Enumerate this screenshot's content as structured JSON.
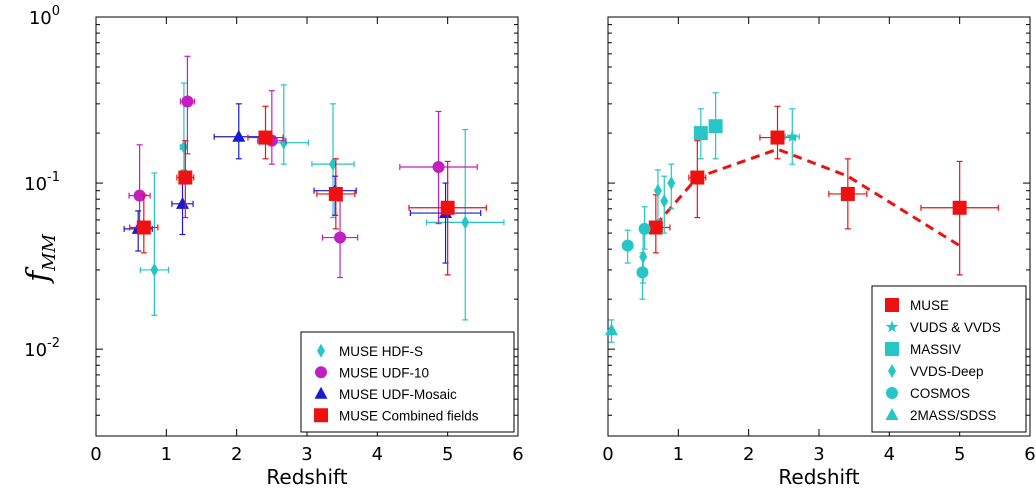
{
  "chart_data": [
    {
      "type": "scatter",
      "xlabel": "Redshift",
      "ylabel": "f",
      "ylabel_sub": "MM",
      "xlim": [
        0,
        6
      ],
      "ylim": [
        0.003,
        1.0
      ],
      "yscale": "log",
      "xticks": [
        "0",
        "1",
        "2",
        "3",
        "4",
        "5",
        "6"
      ],
      "yticks": [
        {
          "v": 1.0,
          "base": "10",
          "exp": "0"
        },
        {
          "v": 0.1,
          "base": "10",
          "exp": "-1"
        },
        {
          "v": 0.01,
          "base": "10",
          "exp": "-2"
        }
      ],
      "legend_position": "bottom-right",
      "series": [
        {
          "name": "MUSE HDF-S",
          "color": "#26c6c6",
          "marker": "diamond",
          "points": [
            {
              "x": 0.83,
              "y": 0.03,
              "xerr": [
                0.2,
                0.2
              ],
              "yerr": [
                0.016,
                0.115
              ]
            },
            {
              "x": 1.25,
              "y": 0.165,
              "xerr": [
                0.05,
                0.05
              ],
              "yerr": [
                0.12,
                0.4
              ]
            },
            {
              "x": 2.67,
              "y": 0.175,
              "xerr": [
                0.35,
                0.35
              ],
              "yerr": [
                0.13,
                0.39
              ]
            },
            {
              "x": 3.37,
              "y": 0.13,
              "xerr": [
                0.3,
                0.3
              ],
              "yerr": [
                0.062,
                0.3
              ]
            },
            {
              "x": 5.25,
              "y": 0.058,
              "xerr": [
                0.55,
                0.55
              ],
              "yerr": [
                0.015,
                0.21
              ]
            }
          ]
        },
        {
          "name": "MUSE UDF-10",
          "color": "#c21fc2",
          "marker": "circle",
          "points": [
            {
              "x": 0.62,
              "y": 0.084,
              "xerr": [
                0.15,
                0.15
              ],
              "yerr": [
                0.052,
                0.17
              ]
            },
            {
              "x": 1.3,
              "y": 0.31,
              "xerr": [
                0.1,
                0.1
              ],
              "yerr": [
                0.15,
                0.58
              ]
            },
            {
              "x": 2.5,
              "y": 0.18,
              "xerr": [
                0.2,
                0.2
              ],
              "yerr": [
                0.13,
                0.36
              ]
            },
            {
              "x": 3.47,
              "y": 0.047,
              "xerr": [
                0.25,
                0.25
              ],
              "yerr": [
                0.027,
                0.078
              ]
            },
            {
              "x": 4.87,
              "y": 0.125,
              "xerr": [
                0.55,
                0.55
              ],
              "yerr": [
                0.057,
                0.27
              ]
            }
          ]
        },
        {
          "name": "MUSE UDF-Mosaic",
          "color": "#1a1ad0",
          "marker": "triangle",
          "points": [
            {
              "x": 0.6,
              "y": 0.053,
              "xerr": [
                0.2,
                0.2
              ],
              "yerr": [
                0.039,
                0.068
              ]
            },
            {
              "x": 1.23,
              "y": 0.075,
              "xerr": [
                0.15,
                0.15
              ],
              "yerr": [
                0.049,
                0.1
              ]
            },
            {
              "x": 2.03,
              "y": 0.19,
              "xerr": [
                0.35,
                0.35
              ],
              "yerr": [
                0.14,
                0.3
              ]
            },
            {
              "x": 3.4,
              "y": 0.09,
              "xerr": [
                0.3,
                0.3
              ],
              "yerr": [
                0.064,
                0.11
              ]
            },
            {
              "x": 4.97,
              "y": 0.066,
              "xerr": [
                0.5,
                0.5
              ],
              "yerr": [
                0.033,
                0.1
              ]
            }
          ]
        },
        {
          "name": "MUSE Combined fields",
          "color": "#ee1111",
          "marker": "square",
          "points": [
            {
              "x": 0.68,
              "y": 0.054,
              "xerr": [
                0.2,
                0.2
              ],
              "yerr": [
                0.038,
                0.085
              ]
            },
            {
              "x": 1.27,
              "y": 0.108,
              "xerr": [
                0.12,
                0.12
              ],
              "yerr": [
                0.062,
                0.18
              ]
            },
            {
              "x": 2.41,
              "y": 0.188,
              "xerr": [
                0.25,
                0.25
              ],
              "yerr": [
                0.14,
                0.29
              ]
            },
            {
              "x": 3.41,
              "y": 0.086,
              "xerr": [
                0.27,
                0.27
              ],
              "yerr": [
                0.053,
                0.14
              ]
            },
            {
              "x": 5.0,
              "y": 0.071,
              "xerr": [
                0.55,
                0.55
              ],
              "yerr": [
                0.028,
                0.135
              ]
            }
          ]
        }
      ]
    },
    {
      "type": "scatter",
      "xlabel": "Redshift",
      "xlim": [
        0,
        6
      ],
      "ylim": [
        0.003,
        1.0
      ],
      "yscale": "log",
      "xticks": [
        "0",
        "1",
        "2",
        "3",
        "4",
        "5",
        "6"
      ],
      "legend_position": "bottom-right",
      "series": [
        {
          "name": "MUSE",
          "color": "#ee1111",
          "marker": "square",
          "points": [
            {
              "x": 0.68,
              "y": 0.054,
              "xerr": [
                0.2,
                0.2
              ],
              "yerr": [
                0.038,
                0.085
              ]
            },
            {
              "x": 1.27,
              "y": 0.108,
              "xerr": [
                0.12,
                0.12
              ],
              "yerr": [
                0.062,
                0.18
              ]
            },
            {
              "x": 2.41,
              "y": 0.188,
              "xerr": [
                0.25,
                0.25
              ],
              "yerr": [
                0.14,
                0.29
              ]
            },
            {
              "x": 3.41,
              "y": 0.086,
              "xerr": [
                0.27,
                0.27
              ],
              "yerr": [
                0.053,
                0.14
              ]
            },
            {
              "x": 5.0,
              "y": 0.071,
              "xerr": [
                0.55,
                0.55
              ],
              "yerr": [
                0.028,
                0.135
              ]
            }
          ]
        },
        {
          "name": "VUDS & VVDS",
          "color": "#26c6c6",
          "marker": "star",
          "points": [
            {
              "x": 2.62,
              "y": 0.19,
              "xerr": [
                0.1,
                0.1
              ],
              "yerr": [
                0.13,
                0.28
              ]
            }
          ]
        },
        {
          "name": "MASSIV",
          "color": "#26c6c6",
          "marker": "square",
          "points": [
            {
              "x": 1.32,
              "y": 0.2,
              "xerr": [
                0,
                0
              ],
              "yerr": [
                0.14,
                0.28
              ]
            },
            {
              "x": 1.53,
              "y": 0.22,
              "xerr": [
                0,
                0
              ],
              "yerr": [
                0.14,
                0.35
              ]
            }
          ]
        },
        {
          "name": "VVDS-Deep",
          "color": "#26c6c6",
          "marker": "diamond",
          "points": [
            {
              "x": 0.5,
              "y": 0.036,
              "xerr": [
                0,
                0
              ],
              "yerr": [
                0.025,
                0.055
              ]
            },
            {
              "x": 0.71,
              "y": 0.09,
              "xerr": [
                0,
                0
              ],
              "yerr": [
                0.06,
                0.12
              ]
            },
            {
              "x": 0.8,
              "y": 0.078,
              "xerr": [
                0,
                0
              ],
              "yerr": [
                0.05,
                0.11
              ]
            },
            {
              "x": 0.9,
              "y": 0.1,
              "xerr": [
                0,
                0
              ],
              "yerr": [
                0.07,
                0.13
              ]
            }
          ]
        },
        {
          "name": "COSMOS",
          "color": "#26c6c6",
          "marker": "circle",
          "points": [
            {
              "x": 0.28,
              "y": 0.042,
              "xerr": [
                0,
                0
              ],
              "yerr": [
                0.033,
                0.052
              ]
            },
            {
              "x": 0.49,
              "y": 0.029,
              "xerr": [
                0,
                0
              ],
              "yerr": [
                0.02,
                0.038
              ]
            },
            {
              "x": 0.52,
              "y": 0.053,
              "xerr": [
                0,
                0
              ],
              "yerr": [
                0.04,
                0.072
              ]
            }
          ]
        },
        {
          "name": "2MASS/SDSS",
          "color": "#26c6c6",
          "marker": "triangle",
          "points": [
            {
              "x": 0.05,
              "y": 0.013,
              "xerr": [
                0,
                0
              ],
              "yerr": [
                0.011,
                0.015
              ]
            }
          ]
        }
      ],
      "curves": [
        {
          "style": "dashed",
          "color": "#ee1111",
          "x": [
            0.68,
            1.27,
            2.41,
            3.41,
            5.0
          ],
          "y": [
            0.056,
            0.108,
            0.16,
            0.11,
            0.042
          ]
        }
      ]
    }
  ]
}
